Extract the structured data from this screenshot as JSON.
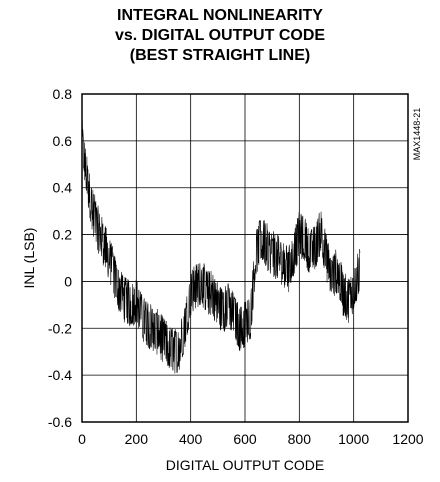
{
  "chart_data": {
    "type": "line",
    "title_lines": [
      "INTEGRAL NONLINEARITY",
      "vs. DIGITAL OUTPUT CODE",
      "(BEST STRAIGHT LINE)"
    ],
    "xlabel": "DIGITAL OUTPUT CODE",
    "ylabel": "INL (LSB)",
    "xlim": [
      0,
      1200
    ],
    "ylim": [
      -0.6,
      0.8
    ],
    "x_ticks": [
      "0",
      "200",
      "400",
      "600",
      "800",
      "1000",
      "1200"
    ],
    "y_ticks": [
      "0.8",
      "0.6",
      "0.4",
      "0.2",
      "0",
      "-0.2",
      "-0.4",
      "-0.6"
    ],
    "grid": true,
    "annotation": "MAX1448-21",
    "line_color": "#000000",
    "series": [
      {
        "x": [
          0,
          20,
          40,
          60,
          80,
          100,
          120,
          140,
          160,
          180,
          200,
          220,
          240,
          260,
          280,
          300,
          320,
          340,
          360,
          380,
          400,
          420,
          440,
          460,
          480,
          500,
          520,
          540,
          560,
          580,
          600,
          620,
          640,
          660,
          680,
          700,
          720,
          740,
          760,
          780,
          800,
          820,
          840,
          860,
          880,
          900,
          920,
          940,
          960,
          980,
          1000,
          1023
        ],
        "y": [
          0.6,
          0.42,
          0.3,
          0.22,
          0.16,
          0.1,
          0.02,
          -0.05,
          -0.08,
          -0.1,
          -0.08,
          -0.15,
          -0.18,
          -0.2,
          -0.22,
          -0.25,
          -0.28,
          -0.3,
          -0.28,
          -0.18,
          -0.05,
          -0.02,
          0.0,
          -0.05,
          -0.05,
          -0.1,
          -0.12,
          -0.1,
          -0.15,
          -0.2,
          -0.18,
          -0.15,
          0.12,
          0.18,
          0.15,
          0.12,
          0.1,
          0.08,
          0.05,
          0.12,
          0.2,
          0.18,
          0.12,
          0.15,
          0.22,
          0.1,
          0.02,
          0.05,
          -0.05,
          -0.08,
          -0.03,
          0.05
        ],
        "noise_amplitude": 0.1
      }
    ]
  }
}
